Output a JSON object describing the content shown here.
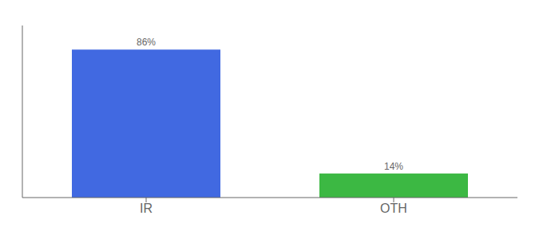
{
  "chart_data": {
    "type": "bar",
    "categories": [
      "IR",
      "OTH"
    ],
    "values": [
      86,
      14
    ],
    "value_labels": [
      "86%",
      "14%"
    ],
    "colors": [
      "#4169e1",
      "#3cb843"
    ],
    "ylim": [
      0,
      100
    ],
    "grid": false,
    "data_labels": true,
    "tick_labels": "x"
  }
}
